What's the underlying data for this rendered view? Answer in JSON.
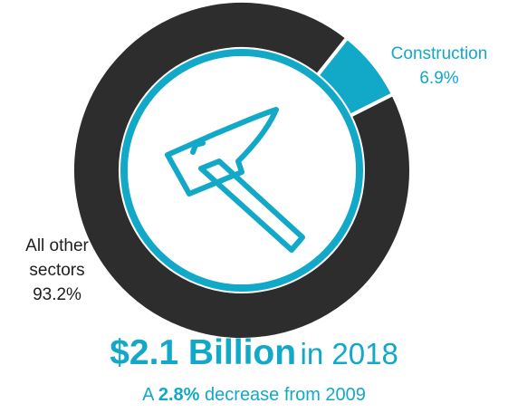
{
  "chart_data": {
    "type": "pie",
    "style": "donut",
    "slices": [
      {
        "label": "Construction",
        "value": 6.9,
        "display": "6.9%",
        "color": "#12a9c9"
      },
      {
        "label": "All other sectors",
        "value": 93.2,
        "display": "93.2%",
        "color": "#2d2d2d"
      }
    ],
    "center_icon": "hammer-icon"
  },
  "labels": {
    "construction_name": "Construction",
    "construction_pct": "6.9%",
    "other_line1": "All other",
    "other_line2": "sectors",
    "other_pct": "93.2%"
  },
  "headline": {
    "amount": "$2.1 Billion",
    "suffix": "in 2018"
  },
  "subline": {
    "prefix": "A",
    "pct": "2.8%",
    "suffix": "decrease from 2009"
  },
  "colors": {
    "accent": "#12a9c9",
    "dark": "#2d2d2d",
    "text": "#1e1e1e"
  }
}
